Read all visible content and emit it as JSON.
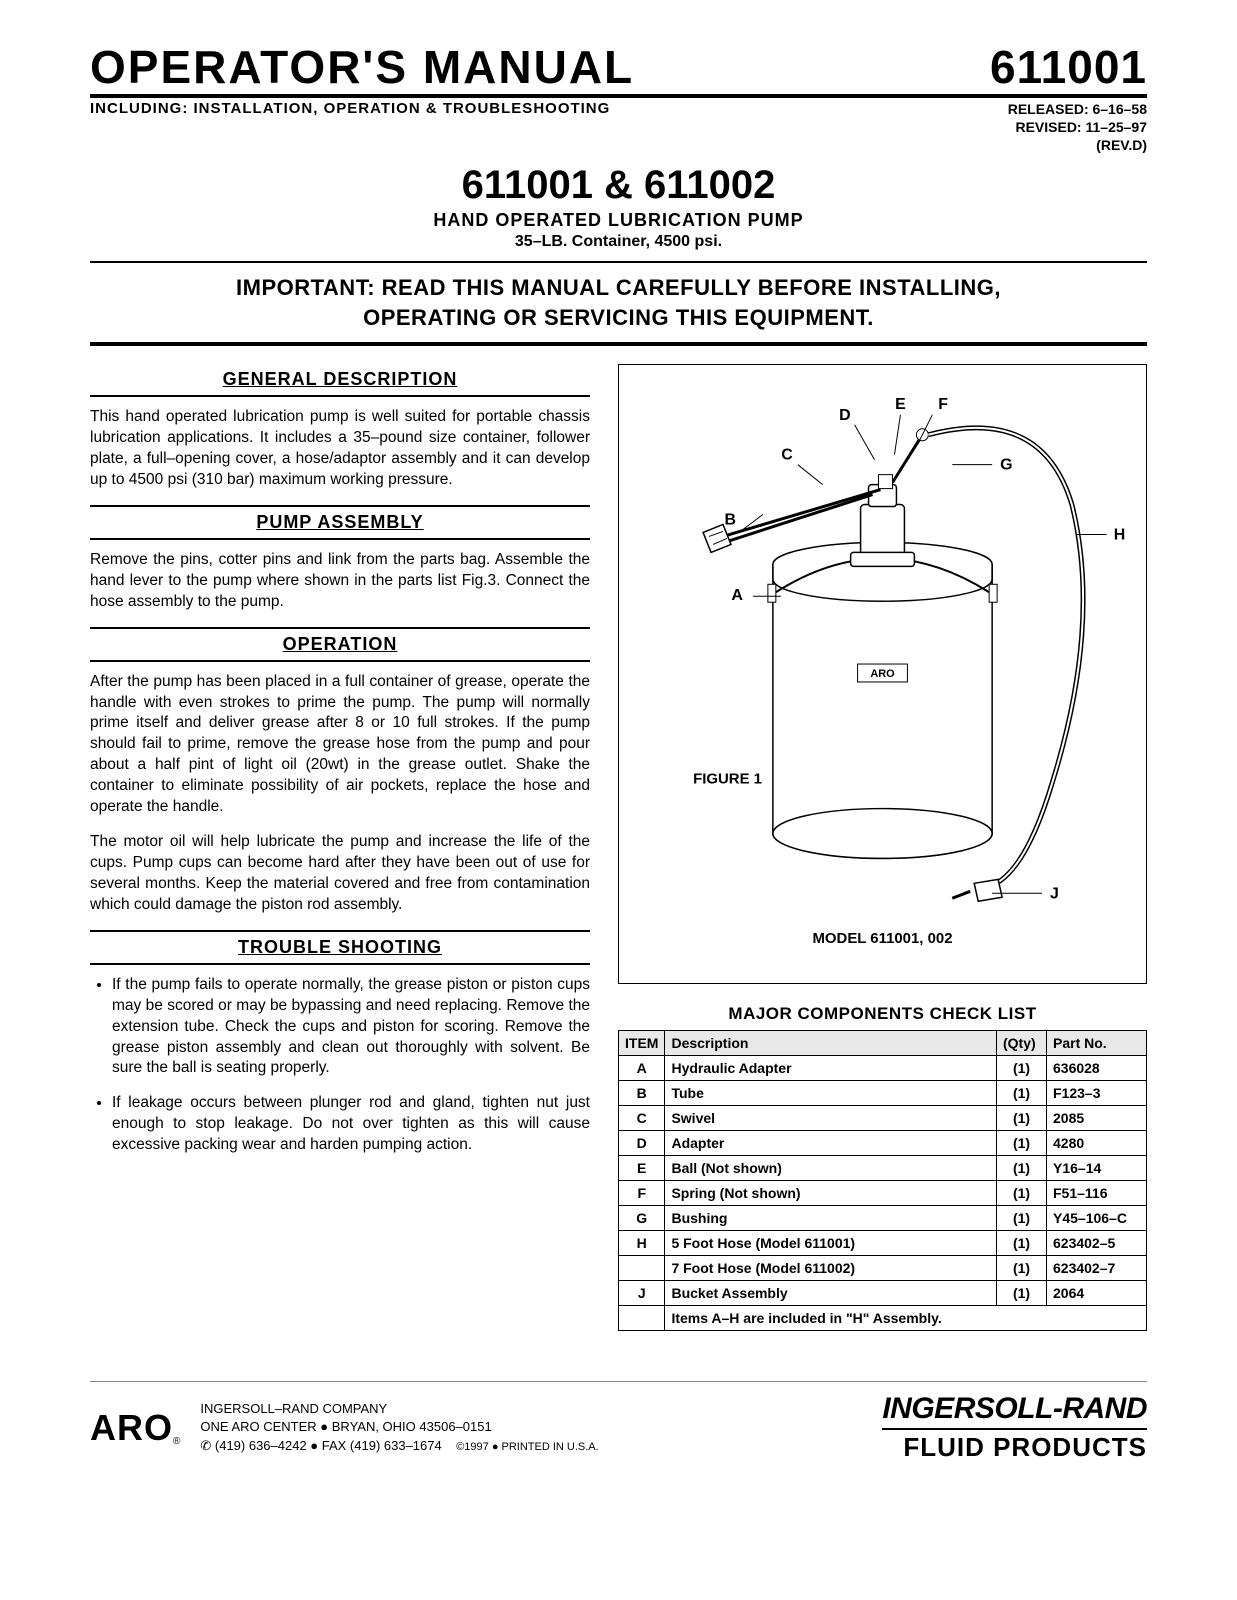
{
  "header": {
    "title": "OPERATOR'S MANUAL",
    "docnum": "611001",
    "including": "INCLUDING: INSTALLATION, OPERATION & TROUBLESHOOTING",
    "released": "RELEASED: 6–16–58",
    "revised": "REVISED: 11–25–97",
    "rev": "(REV.D)"
  },
  "product": {
    "models": "611001 & 611002",
    "name": "HAND OPERATED LUBRICATION PUMP",
    "spec": "35–LB. Container, 4500 psi."
  },
  "important": {
    "line1": "IMPORTANT: READ THIS MANUAL CAREFULLY BEFORE INSTALLING,",
    "line2": "OPERATING OR SERVICING THIS EQUIPMENT."
  },
  "sections": {
    "general": {
      "head": "GENERAL DESCRIPTION",
      "text": "This hand operated lubrication pump is well suited for portable chassis lubrication applications. It includes a 35–pound size container, follower plate, a full–opening cover, a hose/adaptor assembly and it can develop up to 4500 psi (310 bar) maximum working pressure."
    },
    "assembly": {
      "head": "PUMP ASSEMBLY",
      "text": "Remove the pins, cotter pins and link from the parts bag. Assemble the hand lever to the pump where shown in the parts list Fig.3. Connect the hose assembly to the pump."
    },
    "operation": {
      "head": "OPERATION",
      "p1": "After the pump has been placed in a full container of grease, operate the handle with even strokes to prime the pump. The pump will normally prime itself and deliver grease after 8 or 10 full strokes. If the pump should fail to prime, remove the grease hose from the pump and pour about a half pint of light oil (20wt) in the grease outlet. Shake the container to eliminate possibility of air pockets, replace the hose and operate the handle.",
      "p2": "The motor oil will help lubricate the pump and increase the life of the cups. Pump cups can become hard after they have been out of use for several months. Keep the material covered and free from contamination which could damage the piston rod assembly."
    },
    "trouble": {
      "head": "TROUBLE SHOOTING",
      "items": [
        "If the pump fails to operate normally, the grease piston or piston cups may be scored or may be bypassing and need replacing. Remove the extension tube. Check the cups and piston for scoring. Remove the grease piston assembly and clean out thoroughly with solvent. Be sure the ball is seating properly.",
        "If leakage occurs between plunger rod and gland, tighten nut just enough to stop leakage. Do not over tighten as this will cause excessive packing wear and harden pumping action."
      ]
    }
  },
  "figure": {
    "caption": "FIGURE 1",
    "model": "MODEL 611001, 002",
    "labels": {
      "A": "A",
      "B": "B",
      "C": "C",
      "D": "D",
      "E": "E",
      "F": "F",
      "G": "G",
      "H": "H",
      "J": "J"
    },
    "brand": "ARO"
  },
  "checklist": {
    "title": "MAJOR COMPONENTS CHECK LIST",
    "columns": [
      "ITEM",
      "Description",
      "(Qty)",
      "Part No."
    ],
    "rows": [
      {
        "item": "A",
        "desc": "Hydraulic Adapter",
        "qty": "(1)",
        "part": "636028"
      },
      {
        "item": "B",
        "desc": "Tube",
        "qty": "(1)",
        "part": "F123–3"
      },
      {
        "item": "C",
        "desc": "Swivel",
        "qty": "(1)",
        "part": "2085"
      },
      {
        "item": "D",
        "desc": "Adapter",
        "qty": "(1)",
        "part": "4280"
      },
      {
        "item": "E",
        "desc": "Ball (Not shown)",
        "qty": "(1)",
        "part": "Y16–14"
      },
      {
        "item": "F",
        "desc": "Spring (Not shown)",
        "qty": "(1)",
        "part": "F51–116"
      },
      {
        "item": "G",
        "desc": "Bushing",
        "qty": "(1)",
        "part": "Y45–106–C"
      },
      {
        "item": "H",
        "desc": "5 Foot Hose (Model 611001)",
        "qty": "(1)",
        "part": "623402–5"
      },
      {
        "item": "",
        "desc": "7 Foot Hose (Model 611002)",
        "qty": "(1)",
        "part": "623402–7"
      },
      {
        "item": "J",
        "desc": "Bucket Assembly",
        "qty": "(1)",
        "part": "2064"
      }
    ],
    "footnote": "Items A–H are included in \"H\" Assembly."
  },
  "footer": {
    "aro": "ARO",
    "reg": "®",
    "company": "INGERSOLL–RAND COMPANY",
    "addr": "ONE ARO CENTER ● BRYAN, OHIO 43506–0151",
    "phone": "✆ (419) 636–4242 ● FAX (419) 633–1674",
    "copyright": "©1997 ● PRINTED IN U.S.A.",
    "ir": "INGERSOLL-RAND",
    "ir_sub": "FLUID PRODUCTS"
  }
}
